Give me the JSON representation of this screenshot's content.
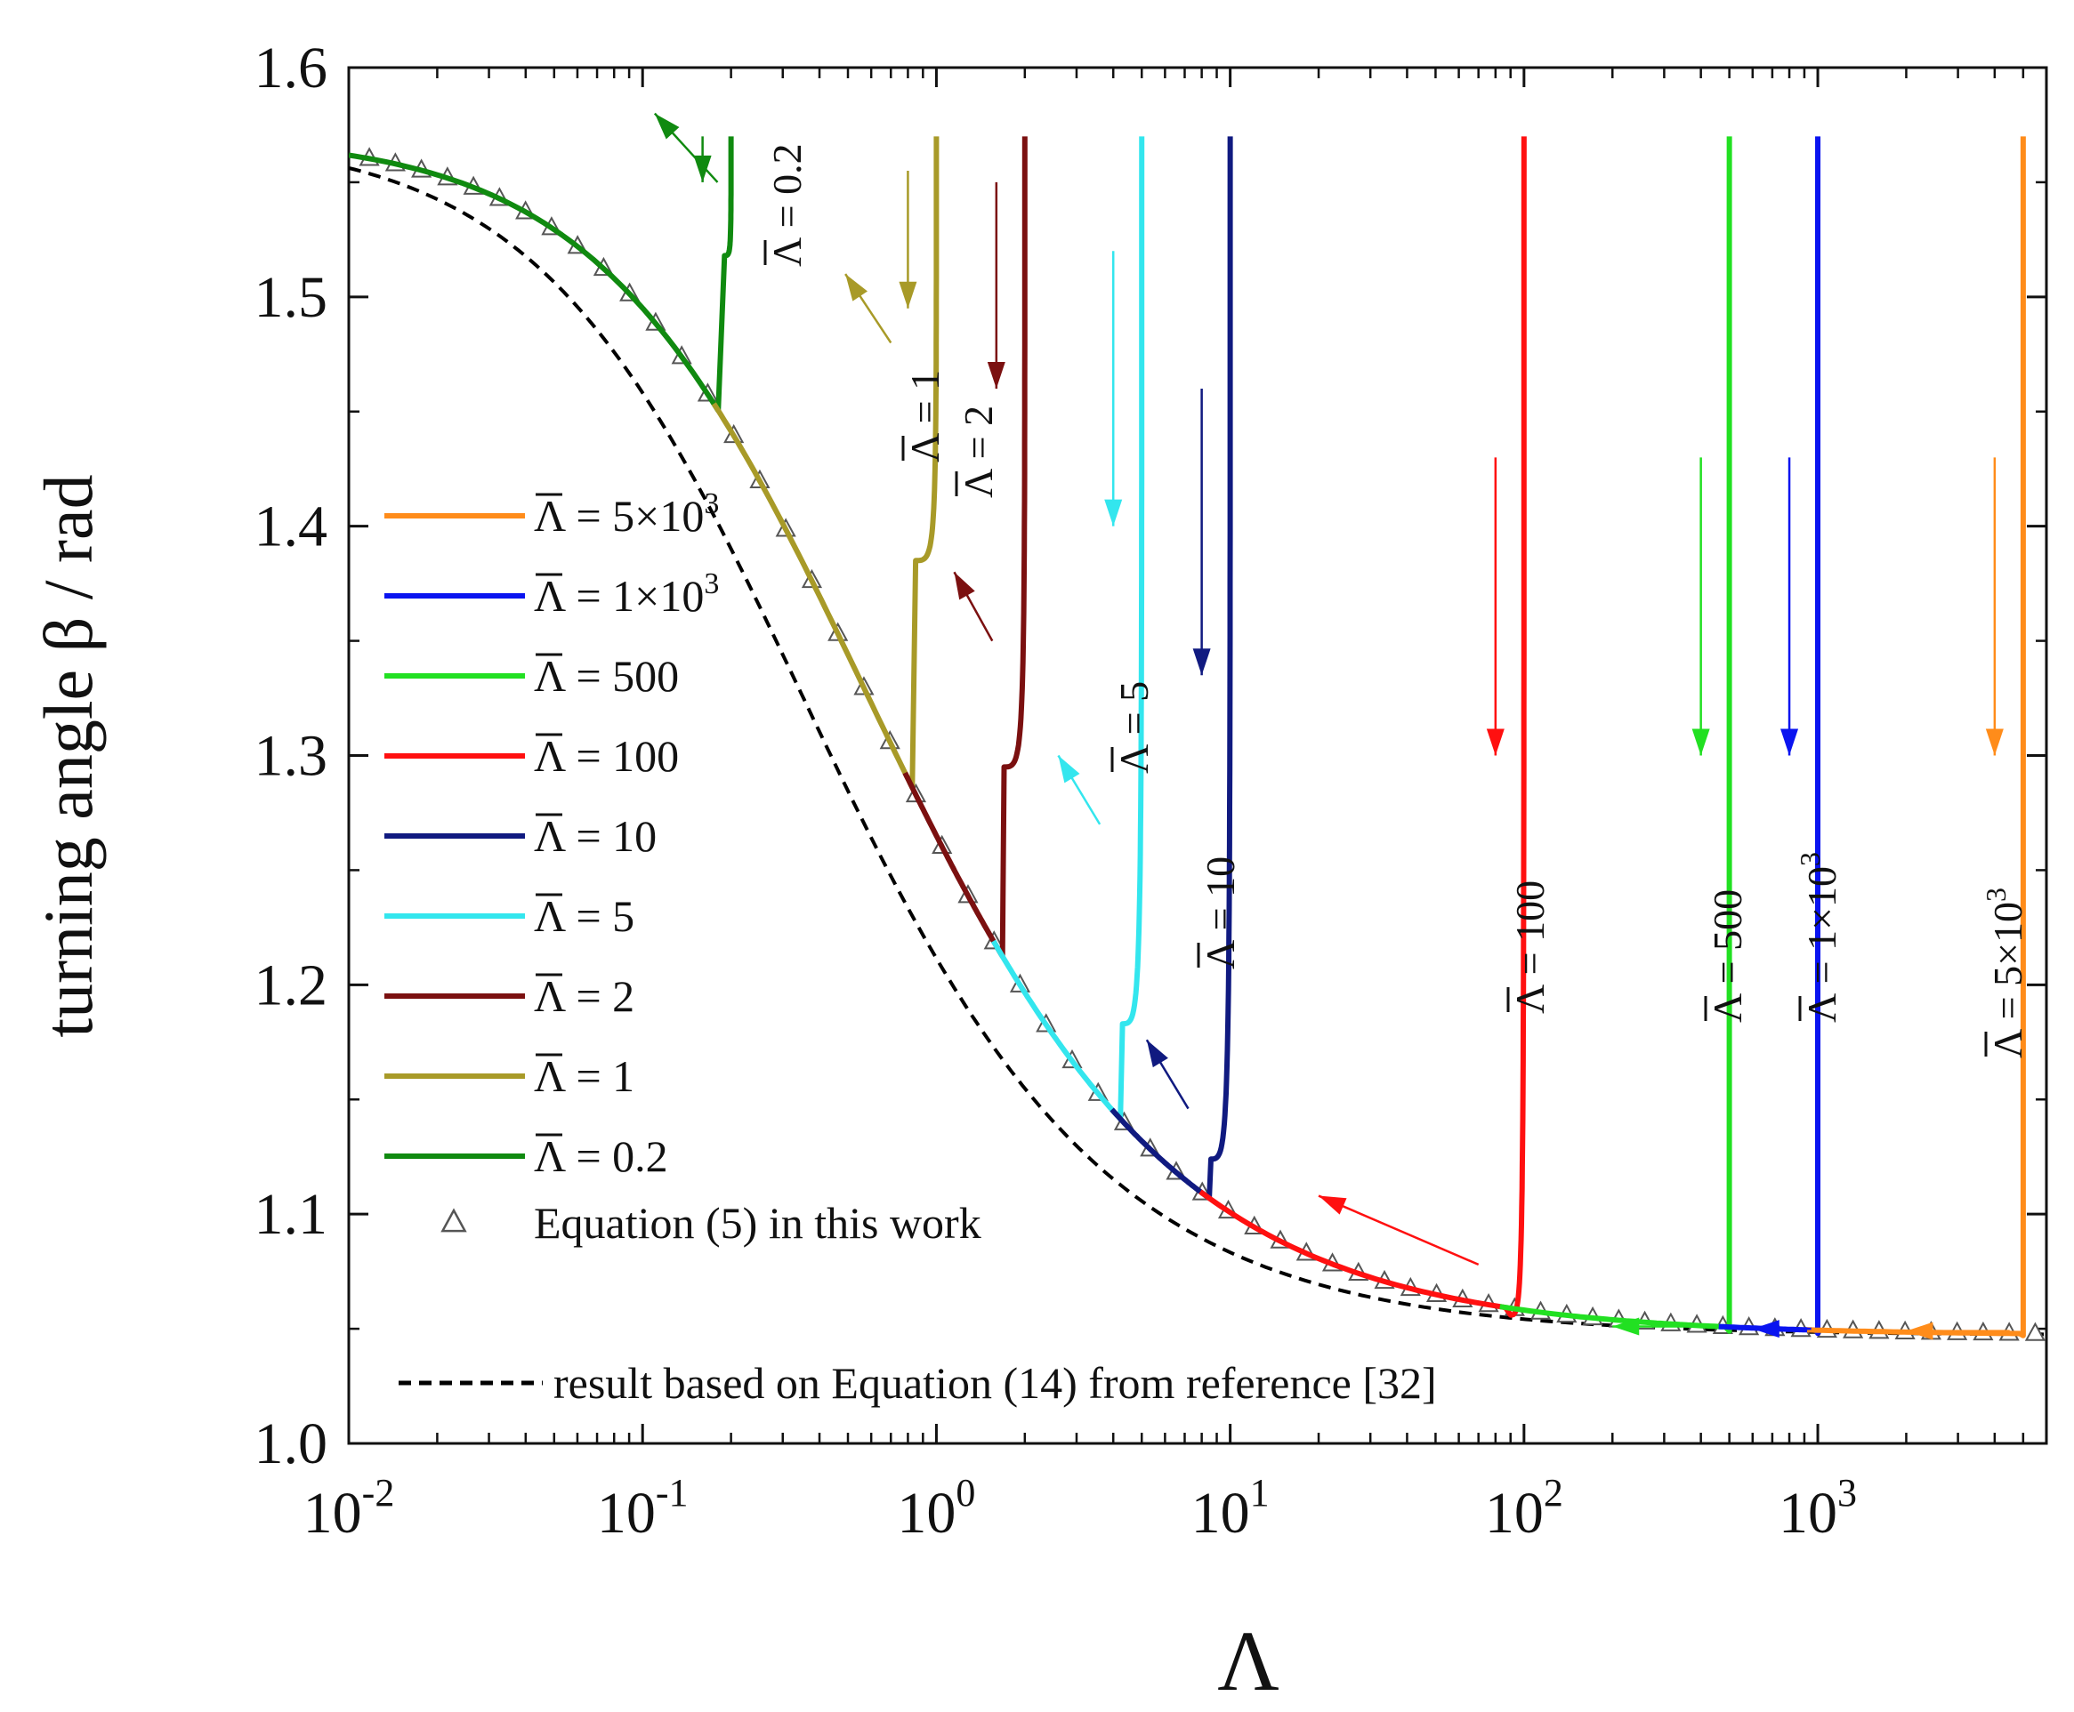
{
  "chart_data": {
    "type": "line",
    "xlabel": "Λ",
    "ylabel": "turning angle β / rad",
    "xscale": "log",
    "xlim": [
      0.01,
      6000
    ],
    "ylim": [
      1.0,
      1.6
    ],
    "xticks": [
      {
        "value": 0.01,
        "base": "10",
        "exp": "-2"
      },
      {
        "value": 0.1,
        "base": "10",
        "exp": "-1"
      },
      {
        "value": 1,
        "base": "10",
        "exp": "0"
      },
      {
        "value": 10,
        "base": "10",
        "exp": "1"
      },
      {
        "value": 100,
        "base": "10",
        "exp": "2"
      },
      {
        "value": 1000,
        "base": "10",
        "exp": "3"
      }
    ],
    "yticks": [
      "1.0",
      "1.1",
      "1.2",
      "1.3",
      "1.4",
      "1.5",
      "1.6"
    ],
    "legend_position": "left-middle",
    "series": [
      {
        "name": "Λ̄ = 5×10³",
        "prefix": "Λ = 5×10",
        "sup": "3",
        "color": "#ff8c1a",
        "lambda_bar": 5000,
        "branch_x": 5000,
        "branch_y": 1.047,
        "start_y": 1.57,
        "arrow_lo": 1.3,
        "arrow_hi": 1.43
      },
      {
        "name": "Λ̄ = 1×10³",
        "prefix": "Λ = 1×10",
        "sup": "3",
        "color": "#0a14f0",
        "lambda_bar": 1000,
        "branch_x": 1000,
        "branch_y": 1.048,
        "start_y": 1.57,
        "arrow_lo": 1.3,
        "arrow_hi": 1.43
      },
      {
        "name": "Λ̄ = 500",
        "prefix": "Λ = 500",
        "sup": "",
        "color": "#22e022",
        "lambda_bar": 500,
        "branch_x": 500,
        "branch_y": 1.049,
        "start_y": 1.57,
        "arrow_lo": 1.3,
        "arrow_hi": 1.43
      },
      {
        "name": "Λ̄ = 100",
        "prefix": "Λ = 100",
        "sup": "",
        "color": "#ff1010",
        "lambda_bar": 100,
        "branch_x": 90,
        "branch_y": 1.056,
        "start_y": 1.57,
        "arrow_lo": 1.3,
        "arrow_hi": 1.43
      },
      {
        "name": "Λ̄ = 10",
        "prefix": "Λ = 10",
        "sup": "",
        "color": "#101a80",
        "lambda_bar": 10,
        "branch_x": 8.6,
        "branch_y": 1.124,
        "start_y": 1.57,
        "arrow_lo": 1.335,
        "arrow_hi": 1.46
      },
      {
        "name": "Λ̄ = 5",
        "prefix": "Λ = 5",
        "sup": "",
        "color": "#33e6ee",
        "lambda_bar": 5,
        "branch_x": 4.3,
        "branch_y": 1.183,
        "start_y": 1.57,
        "arrow_lo": 1.4,
        "arrow_hi": 1.52
      },
      {
        "name": "Λ̄ = 2",
        "prefix": "Λ = 2",
        "sup": "",
        "color": "#7b1010",
        "lambda_bar": 2,
        "branch_x": 1.7,
        "branch_y": 1.295,
        "start_y": 1.57,
        "arrow_lo": 1.46,
        "arrow_hi": 1.55
      },
      {
        "name": "Λ̄ = 1",
        "prefix": "Λ = 1",
        "sup": "",
        "color": "#a89a28",
        "lambda_bar": 1,
        "branch_x": 0.85,
        "branch_y": 1.385,
        "start_y": 1.57,
        "arrow_lo": 1.495,
        "arrow_hi": 1.555
      },
      {
        "name": "Λ̄ = 0.2",
        "prefix": "Λ = 0.2",
        "sup": "",
        "color": "#108a10",
        "lambda_bar": 0.2,
        "branch_x": 0.19,
        "branch_y": 1.518,
        "start_y": 1.57,
        "arrow_lo": 1.55,
        "arrow_hi": 1.57
      }
    ],
    "markers": {
      "name": "Equation (5) in this work",
      "symbol": "open-triangle",
      "color": "#555555",
      "formula": "beta = 1.0472 + 0.5236 / (1 + Λ/0.4)^0.7"
    },
    "reference": {
      "name": "result based on Equation (14) from reference [32]",
      "style": "dashed",
      "color": "#000000",
      "formula": "beta = 1.0472 + 0.5236 / (1 + Λ/0.25)^0.72"
    }
  }
}
